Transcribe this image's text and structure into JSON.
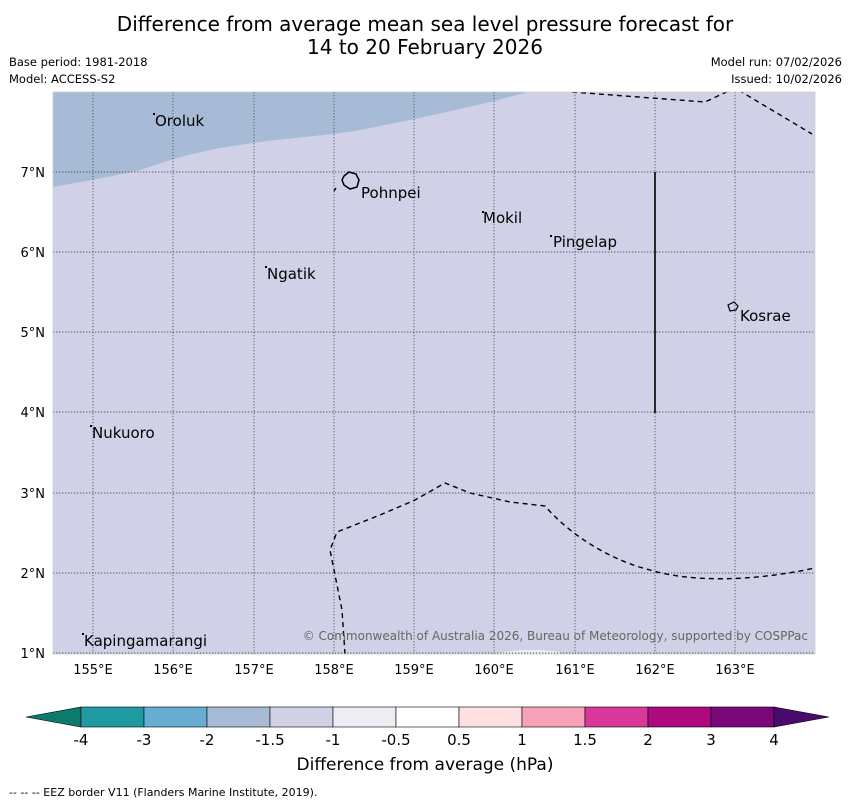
{
  "header": {
    "title_line1": "Difference from average mean sea level pressure forecast for",
    "title_line2": "14 to 20 February 2026",
    "base_period": "Base period: 1981-2018",
    "model": "Model: ACCESS-S2",
    "model_run": "Model run: 07/02/2026",
    "issued": "Issued: 10/02/2026"
  },
  "map": {
    "lon_labels": [
      "155°E",
      "156°E",
      "157°E",
      "158°E",
      "159°E",
      "160°E",
      "161°E",
      "162°E",
      "163°E"
    ],
    "lat_labels": [
      "7°N",
      "6°N",
      "5°N",
      "4°N",
      "3°N",
      "2°N",
      "1°N"
    ],
    "places": {
      "oroluk": "Oroluk",
      "pohnpei": "Pohnpei",
      "mokil": "Mokil",
      "pingelap": "Pingelap",
      "ngatik": "Ngatik",
      "kosrae": "Kosrae",
      "nukuoro": "Nukuoro",
      "kapingamarangi": "Kapingamarangi"
    },
    "copyright": "© Commonwealth of Australia 2026, Bureau of Meteorology, supported by COSPPac",
    "colors": {
      "band_minus1_5_to_minus1": "#d0d0e6",
      "band_minus2_to_minus1_5": "#a7bad6"
    }
  },
  "colorbar": {
    "ticks": [
      "-4",
      "-3",
      "-2",
      "-1.5",
      "-1",
      "-0.5",
      "0.5",
      "1",
      "1.5",
      "2",
      "3",
      "4"
    ],
    "colors": [
      "#0c7b6c",
      "#1f9aa0",
      "#67acd1",
      "#a7bad6",
      "#d0d0e6",
      "#efedf3",
      "#ffffff",
      "#fde0e1",
      "#f7a2b8",
      "#d9389a",
      "#ad0a7f",
      "#7a077a",
      "#4a0a6b"
    ],
    "label": "Difference from average (hPa)"
  },
  "footnote": "--  --  -- EEZ border V11 (Flanders Marine Institute, 2019)."
}
